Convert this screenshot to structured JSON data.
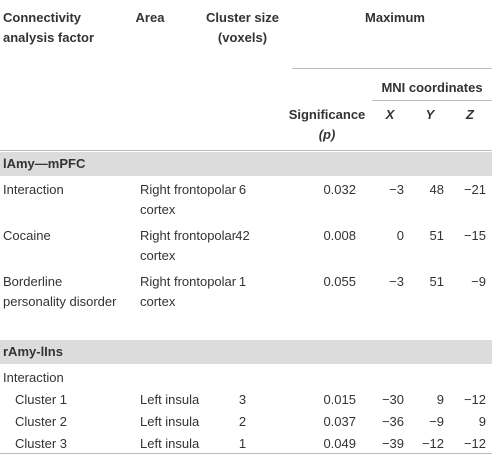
{
  "table": {
    "header": {
      "factor": "Connectivity analysis factor",
      "area": "Area",
      "cluster_size": "Cluster size (voxels)",
      "maximum": "Maximum",
      "mni": "MNI coordinates",
      "significance": "Significance",
      "significance_unit": "(p)",
      "x": "X",
      "y": "Y",
      "z": "Z"
    },
    "sections": [
      {
        "title": "lAmy—mPFC",
        "rows": [
          [
            "Interaction",
            "Right frontopolar cortex",
            "6",
            "0.032",
            "−3",
            "48",
            "−21"
          ],
          [
            "Cocaine",
            "Right frontopolar cortex",
            "42",
            "0.008",
            "0",
            "51",
            "−15"
          ],
          [
            "Borderline personality disorder",
            "Right frontopolar cortex",
            "1",
            "0.055",
            "−3",
            "51",
            "−9"
          ]
        ]
      },
      {
        "title": "rAmy-lIns",
        "rows": [
          [
            "Interaction"
          ],
          [
            "Cluster 1",
            "Left insula",
            "3",
            "0.015",
            "−30",
            "9",
            "−12"
          ],
          [
            "Cluster 2",
            "Left insula",
            "2",
            "0.037",
            "−36",
            "−9",
            "9"
          ],
          [
            "Cluster 3",
            "Left insula",
            "1",
            "0.049",
            "−39",
            "−12",
            "−12"
          ]
        ]
      }
    ]
  }
}
